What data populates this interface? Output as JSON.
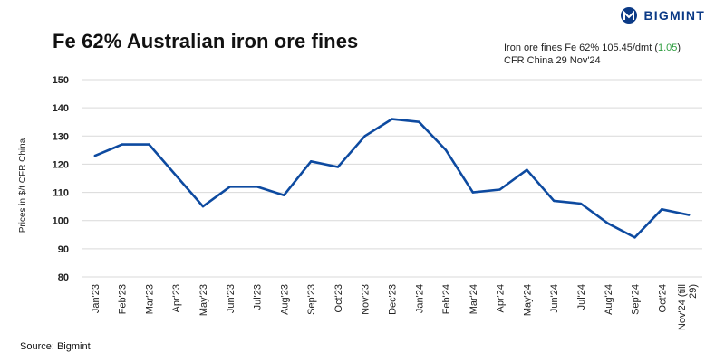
{
  "header": {
    "title": "Fe 62% Australian iron ore fines",
    "brand": "BIGMINT",
    "logo_icon": "bigmint-logo-icon"
  },
  "legend": {
    "prefix": "Iron ore fines Fe 62% 105.45/dmt (",
    "change": "1.05",
    "suffix": ")",
    "line2": "CFR China 29 Nov'24"
  },
  "source": "Source: Bigmint",
  "colors": {
    "series": "#0d4aa0",
    "grid": "#d9d9d9",
    "brand": "#0b3a86",
    "change_positive": "#2e9e3f"
  },
  "chart_data": {
    "type": "line",
    "title": "Fe 62% Australian iron ore fines",
    "ylabel": "Prices in $/t CFR China",
    "xlabel": "",
    "ylim": [
      80,
      150
    ],
    "yticks": [
      80,
      90,
      100,
      110,
      120,
      130,
      140,
      150
    ],
    "grid": true,
    "categories": [
      "Jan'23",
      "Feb'23",
      "Mar'23",
      "Apr'23",
      "May'23",
      "Jun'23",
      "Jul'23",
      "Aug'23",
      "Sep'23",
      "Oct'23",
      "Nov'23",
      "Dec'23",
      "Jan'24",
      "Feb'24",
      "Mar'24",
      "Apr'24",
      "May'24",
      "Jun'24",
      "Jul'24",
      "Aug'24",
      "Sep'24",
      "Oct'24",
      "Nov'24 (till 29)"
    ],
    "series": [
      {
        "name": "",
        "values": [
          123,
          127,
          127,
          116,
          105,
          112,
          112,
          109,
          121,
          119,
          130,
          136,
          135,
          125,
          110,
          111,
          118,
          107,
          106,
          99,
          94,
          104,
          102
        ]
      }
    ]
  }
}
